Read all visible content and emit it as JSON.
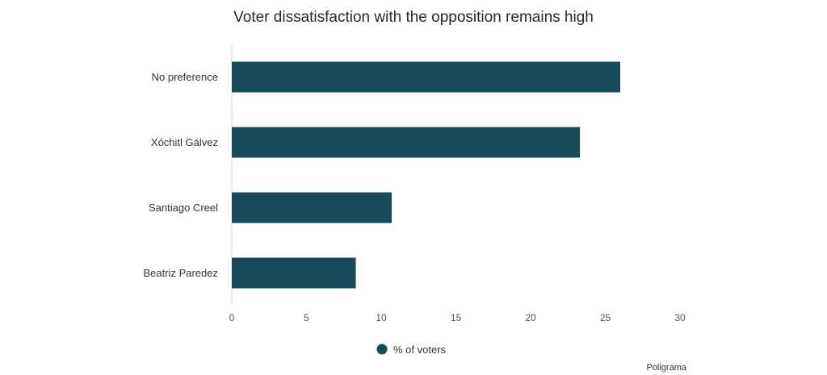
{
  "chart_data": {
    "type": "bar",
    "orientation": "horizontal",
    "title": "Voter dissatisfaction with the opposition remains high",
    "categories": [
      "No preference",
      "Xóchitl Gálvez",
      "Santiago Creel",
      "Beatriz Paredez"
    ],
    "series": [
      {
        "name": "% of voters",
        "values": [
          26,
          23.3,
          10.7,
          8.3
        ],
        "color": "#174a5b"
      }
    ],
    "xlim": [
      0,
      30
    ],
    "x_ticks": [
      "0",
      "5",
      "10",
      "15",
      "20",
      "25",
      "30"
    ],
    "grid": false,
    "legend_position": "bottom",
    "source": "Poligrama"
  }
}
